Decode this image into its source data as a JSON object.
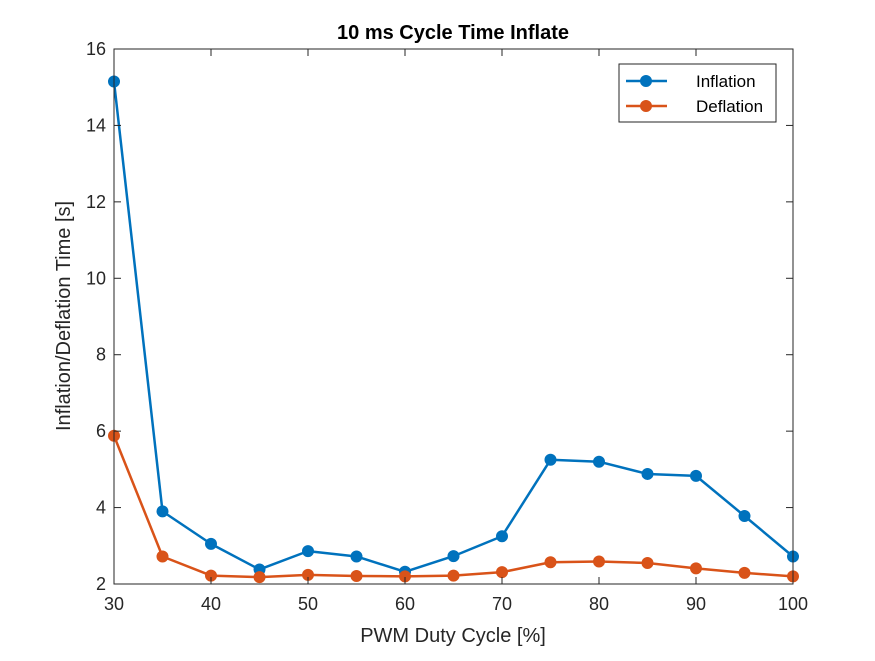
{
  "chart_data": {
    "type": "line",
    "title": "10 ms Cycle Time Inflate",
    "xlabel": "PWM Duty Cycle [%]",
    "ylabel": "Inflation/Deflation Time [s]",
    "xlim": [
      30,
      100
    ],
    "ylim": [
      2,
      16
    ],
    "xticks": [
      30,
      40,
      50,
      60,
      70,
      80,
      90,
      100
    ],
    "yticks": [
      2,
      4,
      6,
      8,
      10,
      12,
      14,
      16
    ],
    "grid": false,
    "legend_position": "top-right",
    "x": [
      30,
      35,
      40,
      45,
      50,
      55,
      60,
      65,
      70,
      75,
      80,
      85,
      90,
      95,
      100
    ],
    "series": [
      {
        "name": "Inflation",
        "color": "#0072BD",
        "values": [
          15.15,
          3.9,
          3.05,
          2.38,
          2.86,
          2.72,
          2.32,
          2.73,
          3.25,
          5.25,
          5.2,
          4.88,
          4.83,
          3.78,
          2.72
        ]
      },
      {
        "name": "Deflation",
        "color": "#D95319",
        "values": [
          5.88,
          2.72,
          2.22,
          2.18,
          2.24,
          2.21,
          2.2,
          2.22,
          2.31,
          2.57,
          2.59,
          2.55,
          2.41,
          2.29,
          2.2
        ]
      }
    ]
  }
}
